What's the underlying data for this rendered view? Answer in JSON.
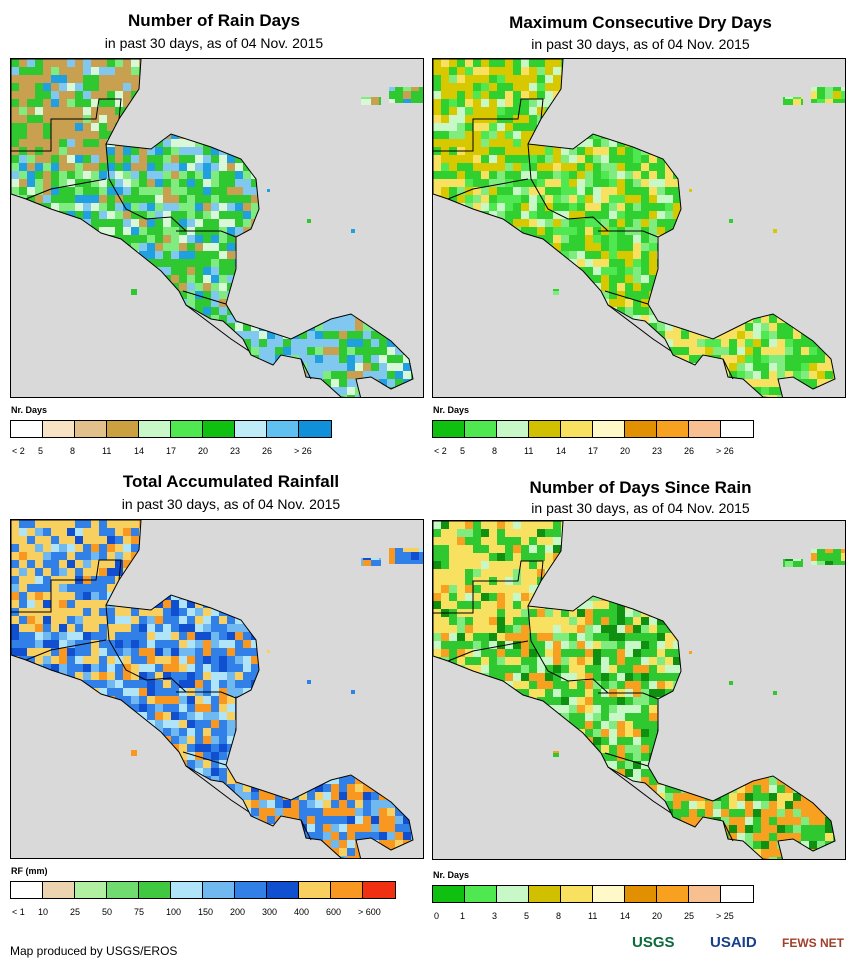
{
  "maps": [
    {
      "title": "Number of Rain Days",
      "subtitle": "in past 30 days, as of 04 Nov. 2015",
      "legend_title": "Nr. Days",
      "legend_colors": [
        "#ffffff",
        "#f8e4c4",
        "#e2c08c",
        "#caa040",
        "#c8f8c8",
        "#50e850",
        "#10c010",
        "#c0ecf8",
        "#60c0f0",
        "#1090d8"
      ],
      "legend_ticks": [
        "< 2",
        "5",
        "8",
        "11",
        "14",
        "17",
        "20",
        "23",
        "26",
        "> 26"
      ],
      "palette": {
        "land": "#30c830",
        "alt1": "#80ec80",
        "alt2": "#d8f8d8",
        "alt3": "#c8a050",
        "alt4": "#80c8f0",
        "alt5": "#20a0e0"
      }
    },
    {
      "title": "Maximum Consecutive Dry Days",
      "subtitle": "in past 30 days, as of 04 Nov. 2015",
      "legend_title": "Nr. Days",
      "legend_colors": [
        "#10c010",
        "#50e850",
        "#c8f8c8",
        "#d0c000",
        "#f8e060",
        "#fff8c8",
        "#e09000",
        "#f8a020",
        "#f8c090",
        "#ffffff"
      ],
      "legend_ticks": [
        "< 2",
        "5",
        "8",
        "11",
        "14",
        "17",
        "20",
        "23",
        "26",
        "> 26"
      ],
      "palette": {
        "land": "#30d030",
        "alt1": "#c8f8c8",
        "alt2": "#80ec80",
        "alt3": "#d8c800",
        "alt4": "#f8e060",
        "alt5": "#50e850"
      }
    },
    {
      "title": "Total Accumulated Rainfall",
      "subtitle": "in past 30 days, as of 04 Nov. 2015",
      "legend_title": "RF (mm)",
      "legend_colors": [
        "#ffffff",
        "#ecd4b0",
        "#b0f0a0",
        "#70dc70",
        "#40c840",
        "#b0e4f8",
        "#70b8f0",
        "#3080e8",
        "#1050d0",
        "#f8d060",
        "#f89820",
        "#f03010"
      ],
      "legend_ticks": [
        "< 1",
        "10",
        "25",
        "50",
        "75",
        "100",
        "150",
        "200",
        "300",
        "400",
        "600",
        "> 600"
      ],
      "palette": {
        "land": "#3080e8",
        "alt1": "#1050d0",
        "alt2": "#70b8f0",
        "alt3": "#f8d060",
        "alt4": "#f89820",
        "alt5": "#b0e4f8"
      }
    },
    {
      "title": "Number of Days Since Rain",
      "subtitle": "in past 30 days, as of 04 Nov. 2015",
      "legend_title": "Nr. Days",
      "legend_colors": [
        "#10c010",
        "#50e850",
        "#c8f8c8",
        "#d0c000",
        "#f8e060",
        "#fff8c8",
        "#e09000",
        "#f8a020",
        "#f8c090",
        "#ffffff"
      ],
      "legend_ticks": [
        "0",
        "1",
        "3",
        "5",
        "8",
        "11",
        "14",
        "20",
        "25",
        "> 25"
      ],
      "palette": {
        "land": "#30c830",
        "alt1": "#109010",
        "alt2": "#c8f8c8",
        "alt3": "#f8e060",
        "alt4": "#f8a020",
        "alt5": "#80ec80"
      }
    }
  ],
  "footer": {
    "credit": "Map produced by USGS/EROS",
    "logos": [
      "USGS",
      "USAID",
      "FEWS NET"
    ]
  }
}
